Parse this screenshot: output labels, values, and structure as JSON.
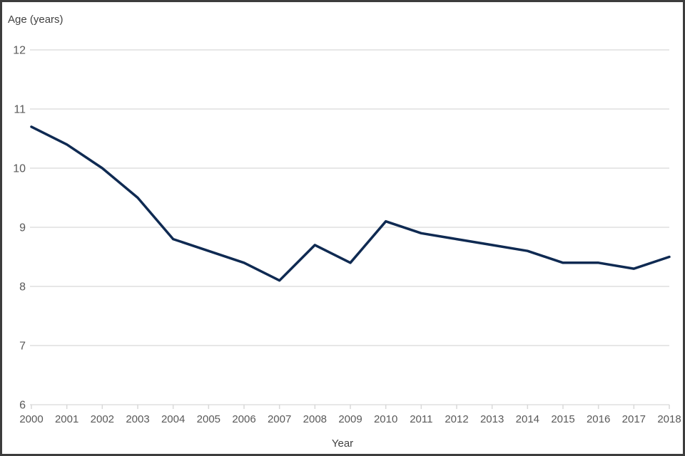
{
  "chart": {
    "y_axis_title": "Age (years)",
    "x_axis_title": "Year"
  },
  "chart_data": {
    "type": "line",
    "title": "",
    "xlabel": "Year",
    "ylabel": "Age (years)",
    "x": [
      2000,
      2001,
      2002,
      2003,
      2004,
      2005,
      2006,
      2007,
      2008,
      2009,
      2010,
      2011,
      2012,
      2013,
      2014,
      2015,
      2016,
      2017,
      2018
    ],
    "values": [
      10.7,
      10.4,
      10.0,
      9.5,
      8.8,
      8.6,
      8.4,
      8.1,
      8.7,
      8.4,
      9.1,
      8.9,
      8.8,
      8.7,
      8.6,
      8.4,
      8.4,
      8.3,
      8.5
    ],
    "ylim": [
      6,
      12
    ],
    "yticks": [
      6,
      7,
      8,
      9,
      10,
      11,
      12
    ],
    "grid": "horizontal-only",
    "legend": "none",
    "colors": {
      "line": "#0f2a52",
      "gridline": "#e7e7e7",
      "tick_mark": "#d9d9d9",
      "tick_label": "#595959",
      "axis_title": "#414141",
      "frame_border": "#3d3d3d",
      "background": "#ffffff"
    }
  }
}
